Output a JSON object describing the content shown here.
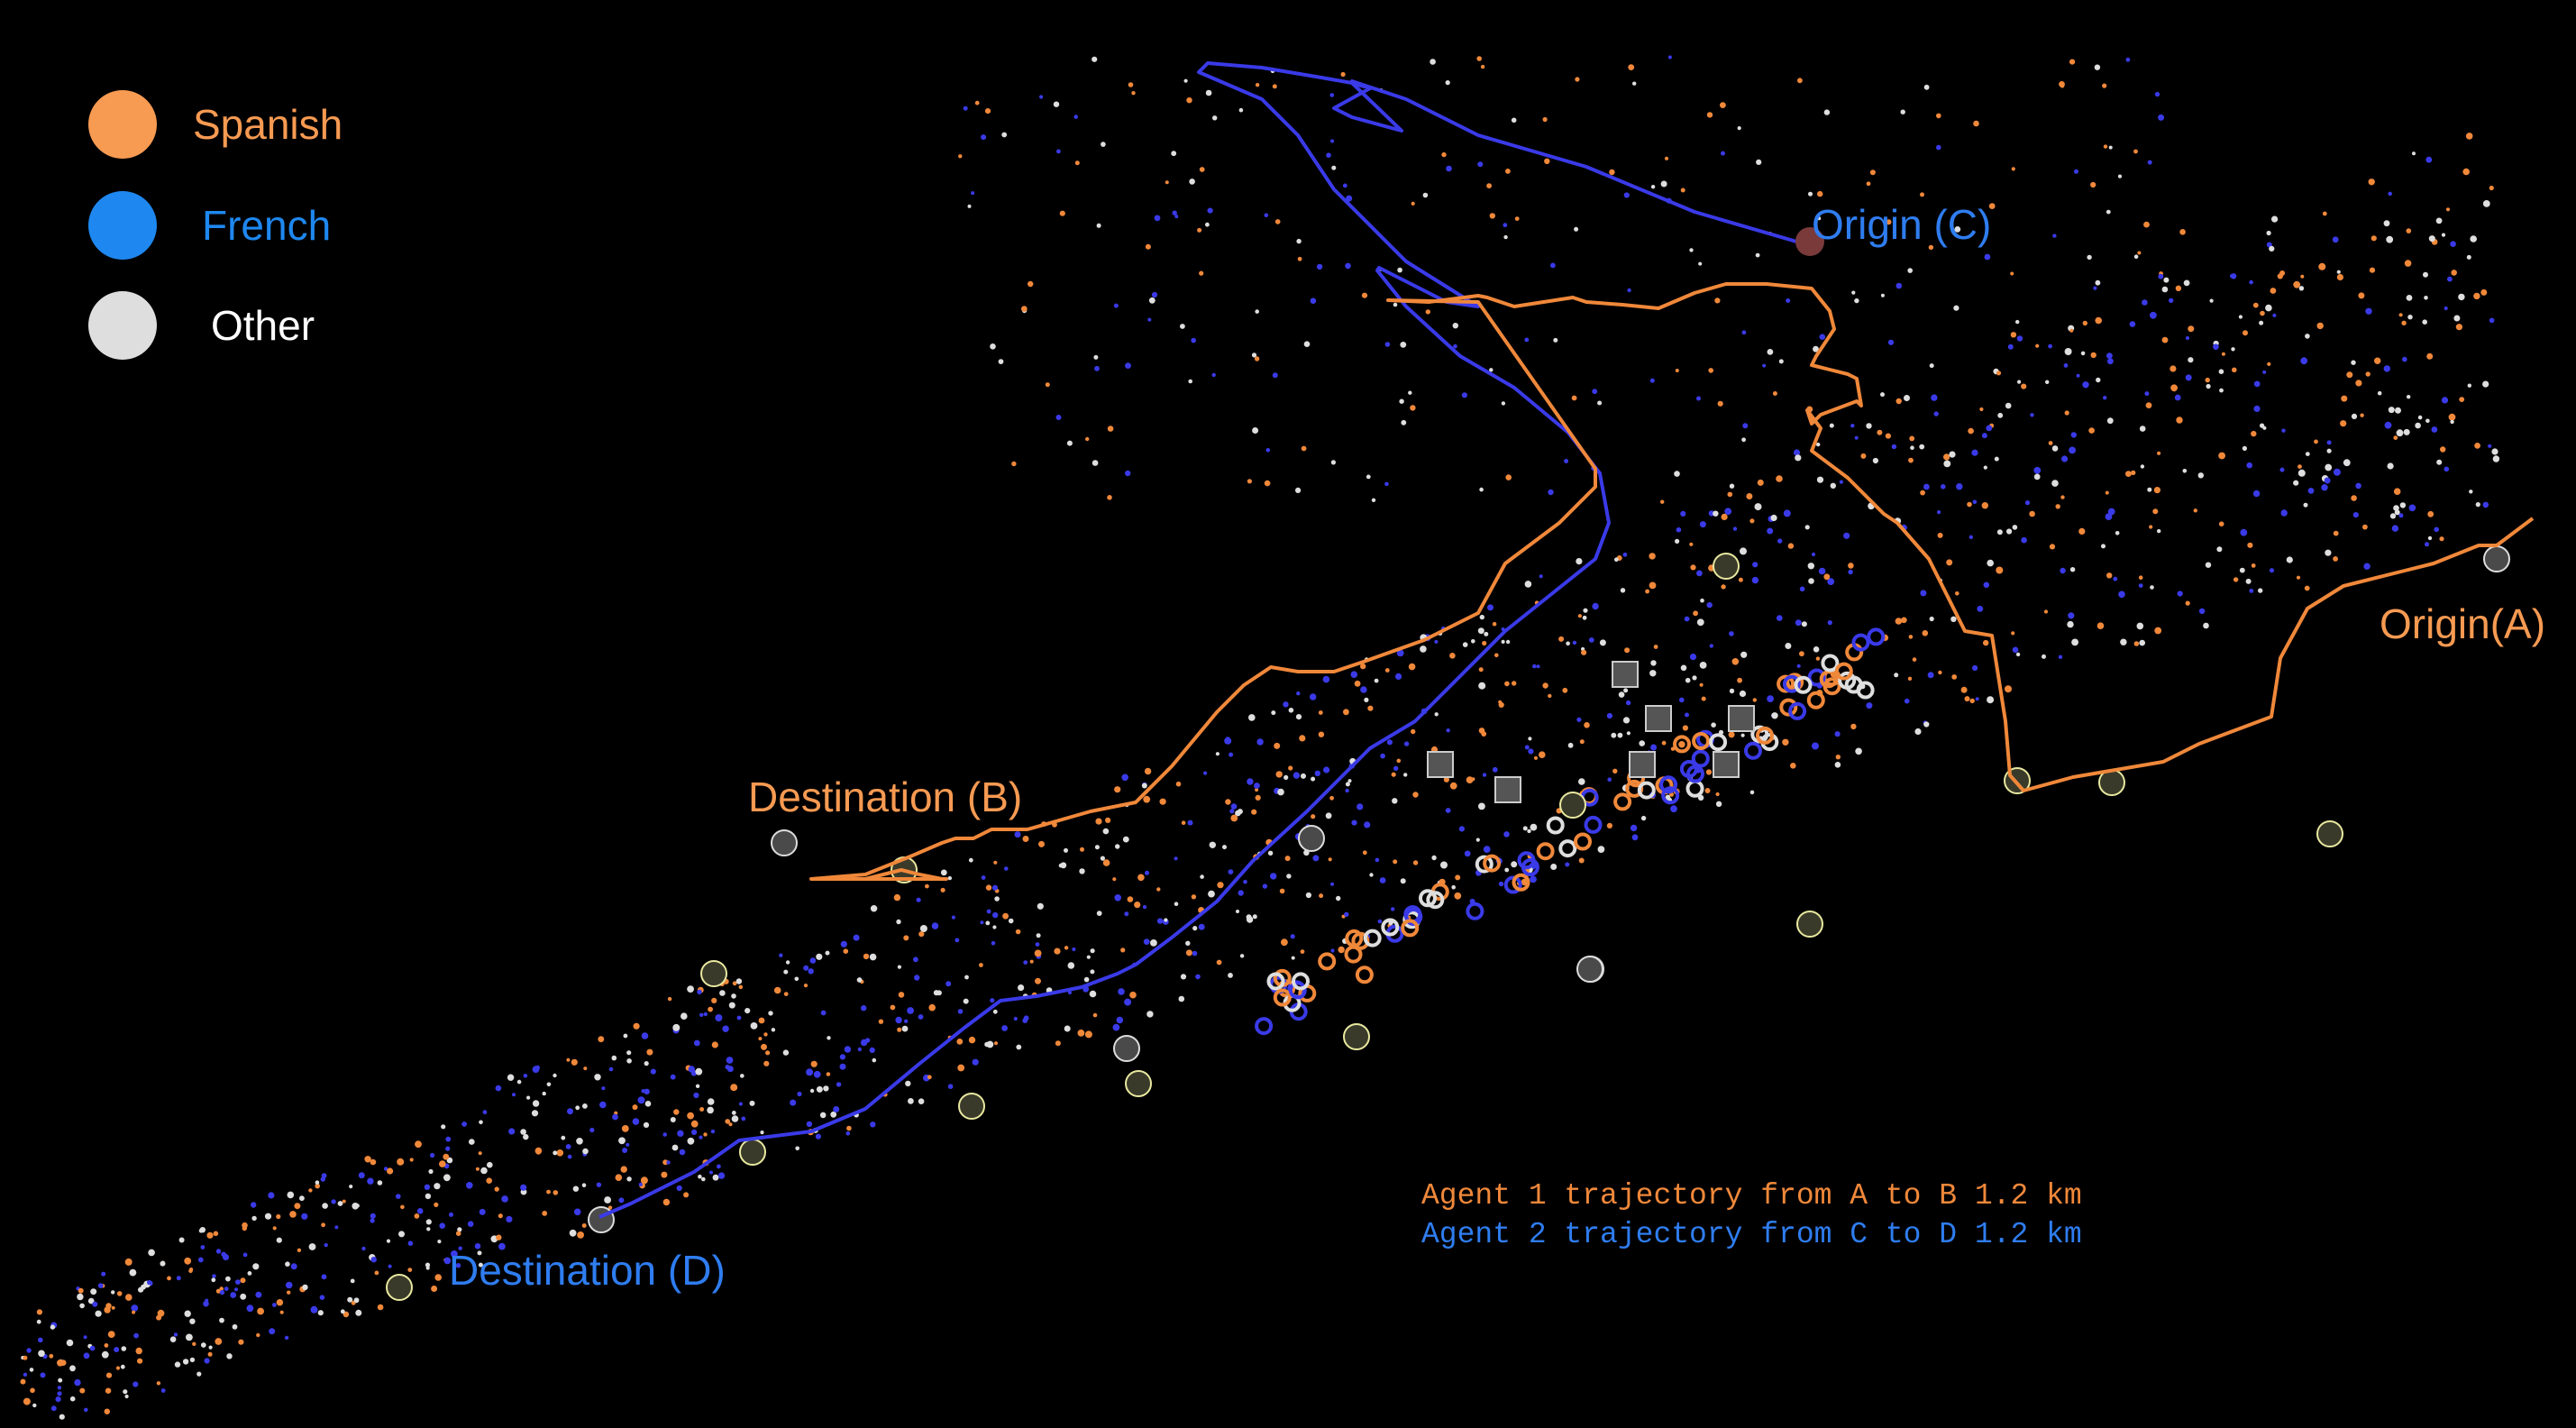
{
  "legend": {
    "spanish": {
      "label": "Spanish",
      "color": "#f79a52"
    },
    "french": {
      "label": "French",
      "color": "#1e88f0"
    },
    "other": {
      "label": "Other",
      "color": "#dedede"
    }
  },
  "labels": {
    "origin_a": "Origin(A)",
    "origin_c": "Origin (C)",
    "destination_b": "Destination (B)",
    "destination_d": "Destination (D)"
  },
  "notes": {
    "agent1": "Agent 1 trajectory from A to B 1.2 km",
    "agent2": "Agent 2 trajectory from C to D 1.2 km"
  },
  "colors": {
    "background": "#000000",
    "agent1_path": "#f0883a",
    "agent2_path": "#3a3ae8",
    "note_agent1": "#f0883a",
    "note_agent2": "#2f7df0",
    "origin_c_marker": "#7a3a3a"
  }
}
